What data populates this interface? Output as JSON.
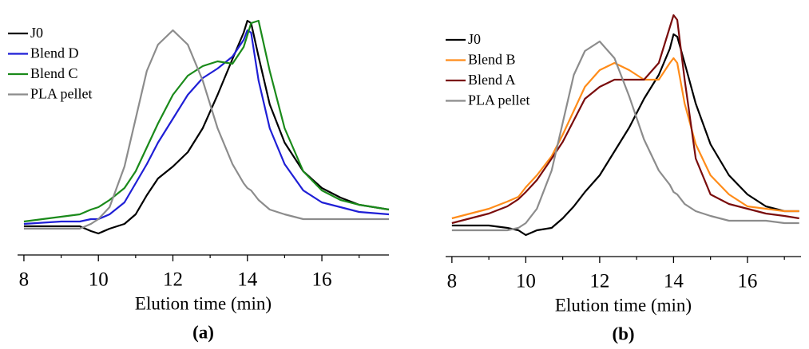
{
  "chart_data": [
    {
      "type": "line",
      "panel_label": "(a)",
      "x_label": "Elution time (min)",
      "xlim": [
        7.83,
        17.8
      ],
      "xticks": [
        8,
        10,
        12,
        14,
        16
      ],
      "xminorticks": [
        9,
        11,
        13,
        15,
        17
      ],
      "ylim": [
        0,
        1
      ],
      "x": [
        8,
        9,
        9.5,
        9.8,
        10,
        10.3,
        10.7,
        11,
        11.3,
        11.6,
        12,
        12.4,
        12.8,
        13.2,
        13.6,
        13.9,
        14.0,
        14.1,
        14.3,
        14.6,
        15,
        15.5,
        16,
        16.5,
        17,
        17.8
      ],
      "series": [
        {
          "name": "J0",
          "color": "#000000",
          "values": [
            0.12,
            0.12,
            0.12,
            0.1,
            0.09,
            0.11,
            0.13,
            0.17,
            0.25,
            0.32,
            0.37,
            0.43,
            0.53,
            0.67,
            0.82,
            0.93,
            0.98,
            0.97,
            0.83,
            0.63,
            0.47,
            0.35,
            0.28,
            0.24,
            0.21,
            0.19
          ]
        },
        {
          "name": "Blend D",
          "color": "#1f1fd6",
          "values": [
            0.13,
            0.14,
            0.14,
            0.15,
            0.15,
            0.17,
            0.22,
            0.3,
            0.38,
            0.47,
            0.57,
            0.67,
            0.74,
            0.78,
            0.83,
            0.9,
            0.94,
            0.93,
            0.73,
            0.53,
            0.38,
            0.27,
            0.22,
            0.2,
            0.18,
            0.17
          ]
        },
        {
          "name": "Blend C",
          "color": "#1a8a1a",
          "values": [
            0.14,
            0.16,
            0.17,
            0.19,
            0.2,
            0.23,
            0.28,
            0.35,
            0.45,
            0.55,
            0.67,
            0.75,
            0.79,
            0.81,
            0.8,
            0.87,
            0.92,
            0.97,
            0.98,
            0.77,
            0.53,
            0.35,
            0.27,
            0.23,
            0.21,
            0.19
          ]
        },
        {
          "name": "PLA pellet",
          "color": "#8c8c8c",
          "values": [
            0.11,
            0.11,
            0.11,
            0.13,
            0.15,
            0.2,
            0.37,
            0.57,
            0.77,
            0.88,
            0.94,
            0.88,
            0.73,
            0.53,
            0.38,
            0.3,
            0.28,
            0.27,
            0.23,
            0.19,
            0.17,
            0.15,
            0.15,
            0.15,
            0.15,
            0.15
          ]
        }
      ]
    },
    {
      "type": "line",
      "panel_label": "(b)",
      "x_label": "Elution time (min)",
      "xlim": [
        7.83,
        17.45
      ],
      "xticks": [
        8,
        10,
        12,
        14,
        16
      ],
      "xminorticks": [
        9,
        11,
        13,
        15,
        17
      ],
      "ylim": [
        0,
        1.05
      ],
      "x": [
        8,
        9,
        9.5,
        9.8,
        10,
        10.3,
        10.7,
        11,
        11.3,
        11.6,
        12,
        12.4,
        12.8,
        13.2,
        13.6,
        13.9,
        14.0,
        14.1,
        14.3,
        14.6,
        15,
        15.5,
        16,
        16.5,
        17,
        17.4
      ],
      "series": [
        {
          "name": "J0",
          "color": "#000000",
          "values": [
            0.13,
            0.13,
            0.12,
            0.11,
            0.09,
            0.11,
            0.12,
            0.16,
            0.21,
            0.27,
            0.34,
            0.44,
            0.54,
            0.66,
            0.76,
            0.87,
            0.93,
            0.92,
            0.81,
            0.64,
            0.47,
            0.34,
            0.26,
            0.21,
            0.19,
            0.19
          ]
        },
        {
          "name": "Blend B",
          "color": "#ff8c1a",
          "values": [
            0.16,
            0.2,
            0.23,
            0.25,
            0.29,
            0.34,
            0.42,
            0.51,
            0.61,
            0.71,
            0.78,
            0.81,
            0.78,
            0.74,
            0.74,
            0.81,
            0.83,
            0.81,
            0.64,
            0.47,
            0.34,
            0.26,
            0.21,
            0.2,
            0.19,
            0.19
          ]
        },
        {
          "name": "Blend A",
          "color": "#7a0c0c",
          "values": [
            0.14,
            0.18,
            0.21,
            0.24,
            0.27,
            0.32,
            0.41,
            0.48,
            0.57,
            0.66,
            0.71,
            0.74,
            0.74,
            0.74,
            0.81,
            0.96,
            1.01,
            0.99,
            0.74,
            0.41,
            0.26,
            0.22,
            0.2,
            0.18,
            0.17,
            0.16
          ]
        },
        {
          "name": "PLA pellet",
          "color": "#8c8c8c",
          "values": [
            0.11,
            0.11,
            0.11,
            0.12,
            0.14,
            0.2,
            0.36,
            0.56,
            0.76,
            0.86,
            0.9,
            0.83,
            0.67,
            0.49,
            0.36,
            0.3,
            0.27,
            0.26,
            0.22,
            0.19,
            0.17,
            0.15,
            0.15,
            0.15,
            0.14,
            0.14
          ]
        }
      ]
    }
  ]
}
